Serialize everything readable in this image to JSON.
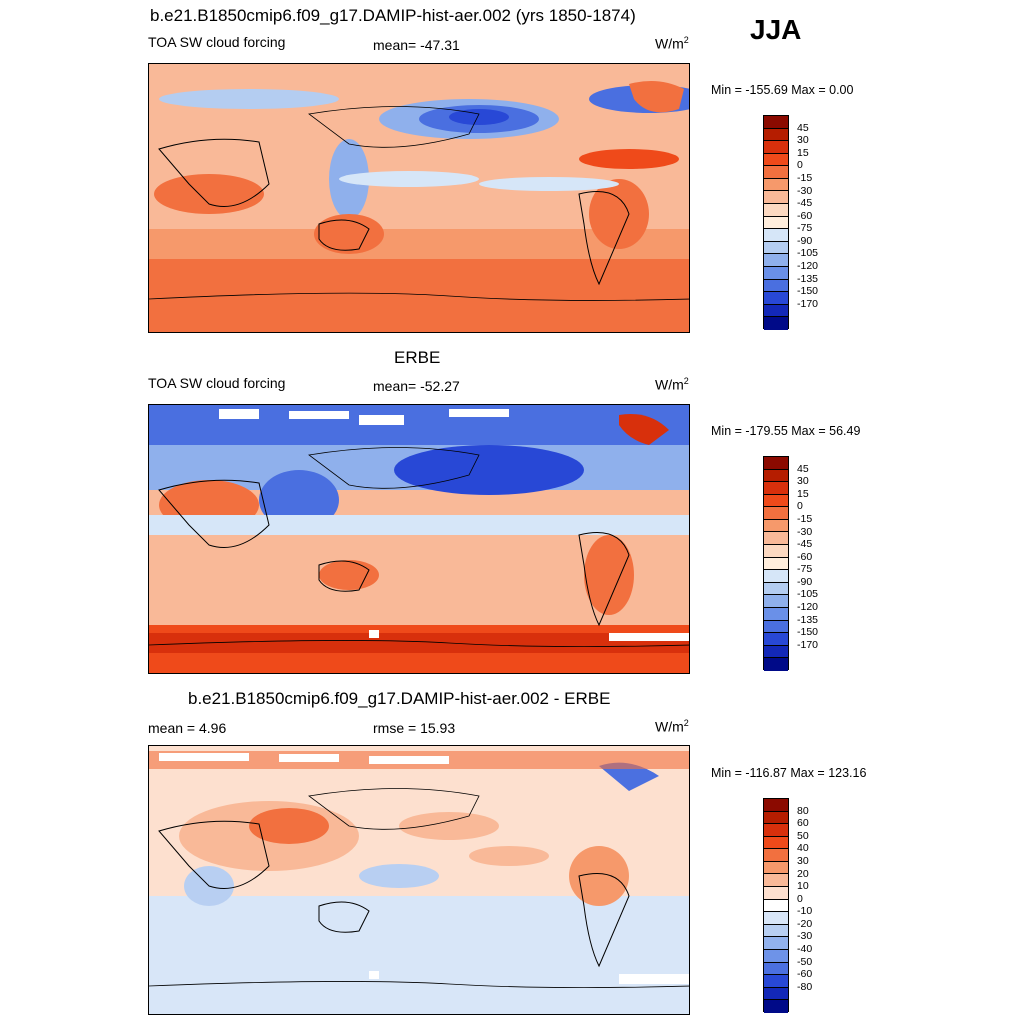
{
  "season": "JJA",
  "units_main": "W/m",
  "units_sup": "2",
  "panels": [
    {
      "title": "b.e21.B1850cmip6.f09_g17.DAMIP-hist-aer.002 (yrs 1850-1874)",
      "left_label": "TOA SW cloud forcing",
      "center_label": "mean= -47.31",
      "minmax": "Min = -155.69 Max =   0.00",
      "colorbar_ticks": [
        "45",
        "30",
        "15",
        "0",
        "-15",
        "-30",
        "-45",
        "-60",
        "-75",
        "-90",
        "-105",
        "-120",
        "-135",
        "-150",
        "-170"
      ]
    },
    {
      "title": "ERBE",
      "left_label": "TOA SW cloud forcing",
      "center_label": "mean= -52.27",
      "minmax": "Min = -179.55 Max =  56.49",
      "colorbar_ticks": [
        "45",
        "30",
        "15",
        "0",
        "-15",
        "-30",
        "-45",
        "-60",
        "-75",
        "-90",
        "-105",
        "-120",
        "-135",
        "-150",
        "-170"
      ]
    },
    {
      "title": "b.e21.B1850cmip6.f09_g17.DAMIP-hist-aer.002 - ERBE",
      "left_label": "mean =   4.96",
      "center_label": "rmse =  15.93",
      "minmax": "Min = -116.87 Max = 123.16",
      "colorbar_ticks": [
        "80",
        "60",
        "50",
        "40",
        "30",
        "20",
        "10",
        "0",
        "-10",
        "-20",
        "-30",
        "-40",
        "-50",
        "-60",
        "-80"
      ]
    }
  ],
  "palettes": {
    "forcing": [
      "#8b0a00",
      "#b51d00",
      "#d8300c",
      "#ef4a1a",
      "#f2703f",
      "#f6996b",
      "#f9b998",
      "#fcd9c1",
      "#ffeedd",
      "#d6e6f8",
      "#b4cdf1",
      "#8fb0ec",
      "#6a90e8",
      "#4a6fe0",
      "#2848d6",
      "#1328b8",
      "#000a88"
    ],
    "diff": [
      "#8b0a00",
      "#b51d00",
      "#d8300c",
      "#ef4a1a",
      "#f2703f",
      "#f6996b",
      "#f9b998",
      "#fde0cf",
      "#ffffff",
      "#d8e6f8",
      "#b8cff2",
      "#92b2ed",
      "#6e93e8",
      "#4b70e0",
      "#2848d6",
      "#1328b8",
      "#000a88"
    ]
  }
}
